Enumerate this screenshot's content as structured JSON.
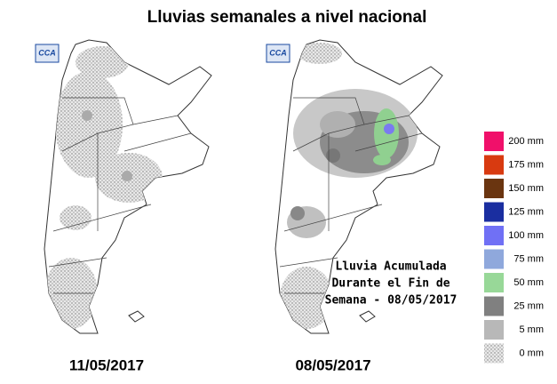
{
  "title": "Lluvias semanales a nivel nacional",
  "logo_left": "CCA",
  "logo_right": "CCA",
  "maps": [
    {
      "date": "11/05/2017"
    },
    {
      "date": "08/05/2017"
    }
  ],
  "annotation": [
    "Lluvia Acumulada",
    "Durante el Fin de",
    "Semana - 08/05/2017"
  ],
  "legend": [
    {
      "label": "200 mm",
      "color": "#f0106a"
    },
    {
      "label": "175 mm",
      "color": "#d83a10"
    },
    {
      "label": "150 mm",
      "color": "#6a3510"
    },
    {
      "label": "125 mm",
      "color": "#1a2ea0"
    },
    {
      "label": "100 mm",
      "color": "#7070f5"
    },
    {
      "label": "75 mm",
      "color": "#8fa8dc"
    },
    {
      "label": "50 mm",
      "color": "#98d898"
    },
    {
      "label": "25 mm",
      "color": "#808080"
    },
    {
      "label": "5 mm",
      "color": "#b8b8b8"
    },
    {
      "label": "0 mm",
      "color": "dots"
    }
  ]
}
